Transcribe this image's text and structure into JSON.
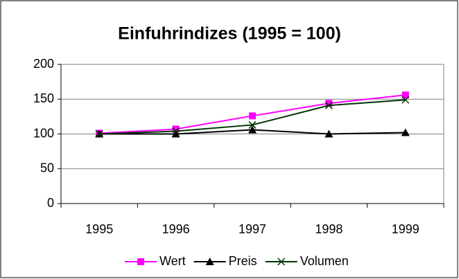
{
  "chart_data": {
    "type": "line",
    "title": "Einfuhrindizes (1995 = 100)",
    "categories": [
      "1995",
      "1996",
      "1997",
      "1998",
      "1999"
    ],
    "series": [
      {
        "name": "Wert",
        "color": "#ff00ff",
        "marker": "square",
        "values": [
          101,
          107,
          126,
          144,
          156
        ]
      },
      {
        "name": "Preis",
        "color": "#000000",
        "marker": "triangle",
        "values": [
          100,
          100,
          106,
          100,
          102
        ]
      },
      {
        "name": "Volumen",
        "color": "#003300",
        "marker": "x",
        "values": [
          100,
          104,
          113,
          141,
          149
        ]
      }
    ],
    "ylim": [
      0,
      200
    ],
    "yticks": [
      0,
      50,
      100,
      150,
      200
    ],
    "grid": true,
    "legend": "bottom"
  }
}
